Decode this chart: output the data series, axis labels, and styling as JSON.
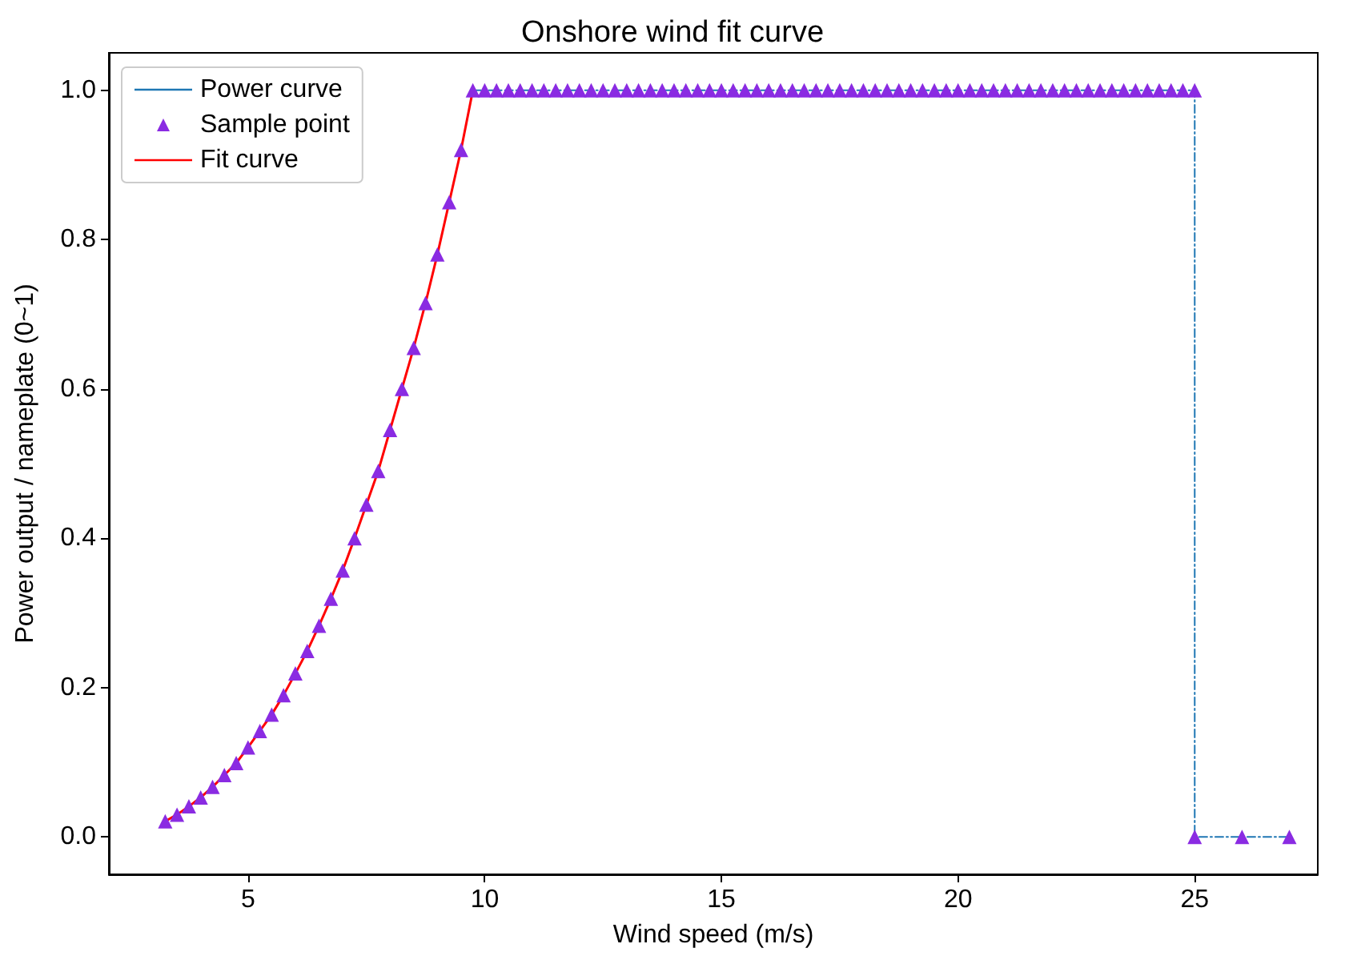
{
  "chart_data": {
    "type": "line",
    "title": "Onshore wind fit curve",
    "xlabel": "Wind speed (m/s)",
    "ylabel": "Power output / nameplate (0~1)",
    "xlim": [
      2.06,
      27.6
    ],
    "xticks": [
      5,
      10,
      15,
      20,
      25
    ],
    "ylim": [
      -0.05,
      1.05
    ],
    "yticks": [
      {
        "value": 0,
        "label": "0.0"
      },
      {
        "value": 0.2,
        "label": "0.2"
      },
      {
        "value": 0.4,
        "label": "0.4"
      },
      {
        "value": 0.6,
        "label": "0.6"
      },
      {
        "value": 0.8,
        "label": "0.8"
      },
      {
        "value": 1,
        "label": "1.0"
      }
    ],
    "grid": false,
    "legend": "top left",
    "series": [
      {
        "name": "Power curve",
        "color": "#1f77b4",
        "line_style": "dashed",
        "marker": "none",
        "x": [
          9.75,
          25,
          25,
          26,
          27
        ],
        "values": [
          1,
          1,
          0,
          0,
          0
        ]
      },
      {
        "name": "Sample point",
        "type": "scatter",
        "color": "#8a2be2",
        "marker": "triangle",
        "x": [
          3.25,
          3.5,
          3.75,
          4,
          4.25,
          4.5,
          4.75,
          5,
          5.25,
          5.5,
          5.75,
          6,
          6.25,
          6.5,
          6.75,
          7,
          7.25,
          7.5,
          7.75,
          8,
          8.25,
          8.5,
          8.75,
          9,
          9.25,
          9.5,
          9.75,
          10,
          10.25,
          10.5,
          10.75,
          11,
          11.25,
          11.5,
          11.75,
          12,
          12.25,
          12.5,
          12.75,
          13,
          13.25,
          13.5,
          13.75,
          14,
          14.25,
          14.5,
          14.75,
          15,
          15.25,
          15.5,
          15.75,
          16,
          16.25,
          16.5,
          16.75,
          17,
          17.25,
          17.5,
          17.75,
          18,
          18.25,
          18.5,
          18.75,
          19,
          19.25,
          19.5,
          19.75,
          20,
          20.25,
          20.5,
          20.75,
          21,
          21.25,
          21.5,
          21.75,
          22,
          22.25,
          22.5,
          22.75,
          23,
          23.25,
          23.5,
          23.75,
          24,
          24.25,
          24.5,
          24.75,
          25,
          25,
          26,
          27
        ],
        "values": [
          0.021,
          0.03,
          0.041,
          0.053,
          0.067,
          0.083,
          0.099,
          0.12,
          0.142,
          0.164,
          0.19,
          0.219,
          0.249,
          0.283,
          0.319,
          0.357,
          0.4,
          0.445,
          0.49,
          0.545,
          0.6,
          0.655,
          0.715,
          0.78,
          0.85,
          0.92,
          1,
          1,
          1,
          1,
          1,
          1,
          1,
          1,
          1,
          1,
          1,
          1,
          1,
          1,
          1,
          1,
          1,
          1,
          1,
          1,
          1,
          1,
          1,
          1,
          1,
          1,
          1,
          1,
          1,
          1,
          1,
          1,
          1,
          1,
          1,
          1,
          1,
          1,
          1,
          1,
          1,
          1,
          1,
          1,
          1,
          1,
          1,
          1,
          1,
          1,
          1,
          1,
          1,
          1,
          1,
          1,
          1,
          1,
          1,
          1,
          1,
          1,
          0,
          0,
          0
        ]
      },
      {
        "name": "Fit curve",
        "color": "#ff0000",
        "line_style": "solid",
        "marker": "none",
        "x": [
          3.25,
          3.5,
          3.75,
          4,
          4.25,
          4.5,
          4.75,
          5,
          5.25,
          5.5,
          5.75,
          6,
          6.25,
          6.5,
          6.75,
          7,
          7.25,
          7.5,
          7.75,
          8,
          8.25,
          8.5,
          8.75,
          9,
          9.25,
          9.5,
          9.75
        ],
        "values": [
          0.021,
          0.03,
          0.041,
          0.053,
          0.067,
          0.083,
          0.099,
          0.12,
          0.142,
          0.164,
          0.19,
          0.219,
          0.249,
          0.283,
          0.319,
          0.357,
          0.4,
          0.445,
          0.49,
          0.545,
          0.6,
          0.655,
          0.715,
          0.78,
          0.85,
          0.92,
          1
        ]
      }
    ]
  }
}
